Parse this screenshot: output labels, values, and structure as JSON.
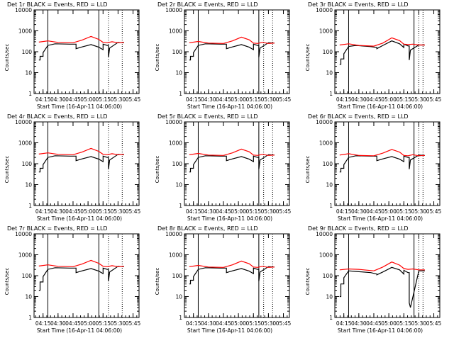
{
  "figure": {
    "xlabel": "Start Time (16-Apr-11 04:06:00)",
    "ylabel": "Counts/sec",
    "xticks": [
      "04:15",
      "04:30",
      "04:45",
      "05:00",
      "05:15",
      "05:30",
      "05:45"
    ],
    "yticks": [
      "1",
      "10",
      "100",
      "1000",
      "10000"
    ]
  },
  "colors": {
    "events": "#000000",
    "lld": "#ff0000",
    "axis": "#000000"
  },
  "chart_data": [
    {
      "type": "line",
      "title": "Det 1r BLACK = Events, RED = LLD",
      "xlabel": "Start Time (16-Apr-11 04:06:00)",
      "ylabel": "Counts/sec",
      "xlim": [
        4.1,
        5.85
      ],
      "ylim": [
        1,
        10000
      ],
      "yscale": "log",
      "vlines_solid": [
        4.33,
        5.18
      ],
      "vlines_dotted": [
        5.34,
        5.57
      ],
      "series": [
        {
          "name": "Events",
          "color": "#000000",
          "x": [
            4.18,
            4.2,
            4.2,
            4.25,
            4.25,
            4.33,
            4.45,
            4.7,
            4.8,
            4.8,
            4.9,
            5.05,
            5.18,
            5.25,
            5.25,
            5.32,
            5.34,
            5.34,
            5.36,
            5.5,
            5.6
          ],
          "y": [
            40,
            40,
            60,
            60,
            90,
            200,
            240,
            230,
            230,
            140,
            170,
            220,
            165,
            125,
            230,
            200,
            200,
            55,
            150,
            280,
            270
          ]
        },
        {
          "name": "LLD",
          "color": "#ff0000",
          "x": [
            4.18,
            4.33,
            4.5,
            4.75,
            4.9,
            5.05,
            5.18,
            5.25,
            5.32,
            5.4,
            5.5,
            5.6
          ],
          "y": [
            290,
            330,
            280,
            270,
            360,
            540,
            390,
            280,
            270,
            300,
            270,
            280
          ]
        }
      ]
    },
    {
      "type": "line",
      "title": "Det 2r BLACK = Events, RED = LLD",
      "xlabel": "Start Time (16-Apr-11 04:06:00)",
      "ylabel": "Counts/sec",
      "xlim": [
        4.1,
        5.85
      ],
      "ylim": [
        1,
        10000
      ],
      "yscale": "log",
      "vlines_solid": [
        4.33,
        5.34
      ],
      "vlines_dotted": [
        5.42,
        5.57
      ],
      "series": [
        {
          "name": "Events",
          "color": "#000000",
          "x": [
            4.18,
            4.2,
            4.2,
            4.25,
            4.25,
            4.33,
            4.45,
            4.7,
            4.8,
            4.8,
            4.9,
            5.05,
            5.18,
            5.25,
            5.25,
            5.32,
            5.34,
            5.34,
            5.36,
            5.5,
            5.6
          ],
          "y": [
            40,
            40,
            60,
            60,
            90,
            200,
            240,
            230,
            230,
            140,
            170,
            220,
            165,
            125,
            230,
            200,
            200,
            55,
            150,
            270,
            260
          ]
        },
        {
          "name": "LLD",
          "color": "#ff0000",
          "x": [
            4.18,
            4.33,
            4.5,
            4.75,
            4.9,
            5.05,
            5.18,
            5.25,
            5.32,
            5.4,
            5.5,
            5.6
          ],
          "y": [
            270,
            310,
            260,
            250,
            330,
            500,
            370,
            260,
            250,
            280,
            250,
            260
          ]
        }
      ]
    },
    {
      "type": "line",
      "title": "Det 3r BLACK = Events, RED = LLD",
      "xlabel": "Start Time (16-Apr-11 04:06:00)",
      "ylabel": "Counts/sec",
      "xlim": [
        4.1,
        5.85
      ],
      "ylim": [
        1,
        10000
      ],
      "yscale": "log",
      "vlines_solid": [
        4.33,
        5.42
      ],
      "vlines_dotted": [
        5.5,
        5.57
      ],
      "series": [
        {
          "name": "Events",
          "color": "#000000",
          "x": [
            4.18,
            4.2,
            4.2,
            4.25,
            4.25,
            4.33,
            4.45,
            4.7,
            4.8,
            4.8,
            4.9,
            5.05,
            5.18,
            5.25,
            5.25,
            5.32,
            5.34,
            5.34,
            5.36,
            5.5,
            5.6
          ],
          "y": [
            25,
            25,
            45,
            45,
            80,
            180,
            200,
            175,
            160,
            140,
            200,
            330,
            240,
            160,
            230,
            190,
            190,
            40,
            120,
            210,
            210
          ]
        },
        {
          "name": "LLD",
          "color": "#ff0000",
          "x": [
            4.18,
            4.33,
            4.5,
            4.75,
            4.9,
            5.05,
            5.18,
            5.25,
            5.32,
            5.4,
            5.5,
            5.6
          ],
          "y": [
            210,
            240,
            200,
            185,
            260,
            460,
            340,
            230,
            220,
            230,
            210,
            210
          ]
        }
      ]
    },
    {
      "type": "line",
      "title": "Det 4r BLACK = Events, RED = LLD",
      "xlabel": "Start Time (16-Apr-11 04:06:00)",
      "ylabel": "Counts/sec",
      "xlim": [
        4.1,
        5.85
      ],
      "ylim": [
        1,
        10000
      ],
      "yscale": "log",
      "vlines_solid": [
        4.33,
        5.18
      ],
      "vlines_dotted": [
        5.34,
        5.57
      ],
      "series": [
        {
          "name": "Events",
          "color": "#000000",
          "x": [
            4.18,
            4.2,
            4.2,
            4.25,
            4.25,
            4.33,
            4.45,
            4.7,
            4.8,
            4.8,
            4.9,
            5.05,
            5.18,
            5.25,
            5.25,
            5.32,
            5.34,
            5.34,
            5.36,
            5.5,
            5.6
          ],
          "y": [
            40,
            40,
            60,
            60,
            90,
            200,
            240,
            230,
            230,
            140,
            170,
            220,
            165,
            125,
            230,
            200,
            200,
            55,
            150,
            280,
            270
          ]
        },
        {
          "name": "LLD",
          "color": "#ff0000",
          "x": [
            4.18,
            4.33,
            4.5,
            4.75,
            4.9,
            5.05,
            5.18,
            5.25,
            5.32,
            5.4,
            5.5,
            5.6
          ],
          "y": [
            290,
            330,
            280,
            270,
            360,
            540,
            390,
            280,
            270,
            300,
            270,
            280
          ]
        }
      ]
    },
    {
      "type": "line",
      "title": "Det 5r BLACK = Events, RED = LLD",
      "xlabel": "Start Time (16-Apr-11 04:06:00)",
      "ylabel": "Counts/sec",
      "xlim": [
        4.1,
        5.85
      ],
      "ylim": [
        1,
        10000
      ],
      "yscale": "log",
      "vlines_solid": [
        4.33,
        5.34
      ],
      "vlines_dotted": [
        5.42,
        5.57
      ],
      "series": [
        {
          "name": "Events",
          "color": "#000000",
          "x": [
            4.18,
            4.2,
            4.2,
            4.25,
            4.25,
            4.33,
            4.45,
            4.7,
            4.8,
            4.8,
            4.9,
            5.05,
            5.18,
            5.25,
            5.25,
            5.32,
            5.34,
            5.34,
            5.36,
            5.5,
            5.6
          ],
          "y": [
            40,
            40,
            60,
            60,
            90,
            200,
            240,
            230,
            230,
            140,
            170,
            220,
            165,
            125,
            230,
            200,
            200,
            55,
            150,
            270,
            260
          ]
        },
        {
          "name": "LLD",
          "color": "#ff0000",
          "x": [
            4.18,
            4.33,
            4.5,
            4.75,
            4.9,
            5.05,
            5.18,
            5.25,
            5.32,
            5.4,
            5.5,
            5.6
          ],
          "y": [
            270,
            310,
            260,
            250,
            330,
            500,
            370,
            260,
            250,
            280,
            250,
            260
          ]
        }
      ]
    },
    {
      "type": "line",
      "title": "Det 6r BLACK = Events, RED = LLD",
      "xlabel": "Start Time (16-Apr-11 04:06:00)",
      "ylabel": "Counts/sec",
      "xlim": [
        4.1,
        5.85
      ],
      "ylim": [
        1,
        10000
      ],
      "yscale": "log",
      "vlines_solid": [
        4.33,
        5.42
      ],
      "vlines_dotted": [
        5.5,
        5.57
      ],
      "series": [
        {
          "name": "Events",
          "color": "#000000",
          "x": [
            4.18,
            4.2,
            4.2,
            4.25,
            4.25,
            4.33,
            4.45,
            4.7,
            4.8,
            4.8,
            4.9,
            5.05,
            5.18,
            5.25,
            5.25,
            5.32,
            5.34,
            5.34,
            5.36,
            5.5,
            5.6
          ],
          "y": [
            40,
            40,
            60,
            60,
            90,
            200,
            240,
            230,
            230,
            140,
            170,
            220,
            165,
            125,
            230,
            200,
            200,
            55,
            150,
            260,
            250
          ]
        },
        {
          "name": "LLD",
          "color": "#ff0000",
          "x": [
            4.18,
            4.33,
            4.5,
            4.75,
            4.9,
            5.05,
            5.18,
            5.25,
            5.32,
            5.4,
            5.5,
            5.6
          ],
          "y": [
            260,
            300,
            250,
            240,
            320,
            480,
            360,
            250,
            240,
            270,
            240,
            250
          ]
        }
      ]
    },
    {
      "type": "line",
      "title": "Det 7r BLACK = Events, RED = LLD",
      "xlabel": "Start Time (16-Apr-11 04:06:00)",
      "ylabel": "Counts/sec",
      "xlim": [
        4.1,
        5.85
      ],
      "ylim": [
        1,
        10000
      ],
      "yscale": "log",
      "vlines_solid": [
        4.33,
        5.18
      ],
      "vlines_dotted": [
        5.34,
        5.57
      ],
      "series": [
        {
          "name": "Events",
          "color": "#000000",
          "x": [
            4.18,
            4.2,
            4.2,
            4.25,
            4.25,
            4.33,
            4.45,
            4.7,
            4.8,
            4.8,
            4.9,
            5.05,
            5.18,
            5.25,
            5.25,
            5.32,
            5.34,
            5.34,
            5.36,
            5.5,
            5.6
          ],
          "y": [
            20,
            20,
            50,
            50,
            90,
            200,
            240,
            230,
            230,
            140,
            170,
            220,
            165,
            125,
            230,
            200,
            200,
            55,
            150,
            280,
            270
          ]
        },
        {
          "name": "LLD",
          "color": "#ff0000",
          "x": [
            4.18,
            4.33,
            4.5,
            4.75,
            4.9,
            5.05,
            5.18,
            5.25,
            5.32,
            5.4,
            5.5,
            5.6
          ],
          "y": [
            290,
            330,
            280,
            270,
            360,
            540,
            390,
            280,
            270,
            300,
            270,
            280
          ]
        }
      ]
    },
    {
      "type": "line",
      "title": "Det 8r BLACK = Events, RED = LLD",
      "xlabel": "Start Time (16-Apr-11 04:06:00)",
      "ylabel": "Counts/sec",
      "xlim": [
        4.1,
        5.85
      ],
      "ylim": [
        1,
        10000
      ],
      "yscale": "log",
      "vlines_solid": [
        4.33,
        5.34
      ],
      "vlines_dotted": [
        5.42,
        5.57
      ],
      "series": [
        {
          "name": "Events",
          "color": "#000000",
          "x": [
            4.18,
            4.2,
            4.2,
            4.25,
            4.25,
            4.33,
            4.45,
            4.7,
            4.8,
            4.8,
            4.9,
            5.05,
            5.18,
            5.25,
            5.25,
            5.32,
            5.34,
            5.34,
            5.36,
            5.5,
            5.6
          ],
          "y": [
            40,
            40,
            60,
            60,
            90,
            200,
            240,
            230,
            230,
            140,
            170,
            220,
            165,
            125,
            230,
            200,
            200,
            55,
            150,
            270,
            260
          ]
        },
        {
          "name": "LLD",
          "color": "#ff0000",
          "x": [
            4.18,
            4.33,
            4.5,
            4.75,
            4.9,
            5.05,
            5.18,
            5.25,
            5.32,
            5.4,
            5.5,
            5.6
          ],
          "y": [
            270,
            310,
            260,
            250,
            330,
            500,
            370,
            260,
            250,
            280,
            250,
            260
          ]
        }
      ]
    },
    {
      "type": "line",
      "title": "Det 9r BLACK = Events, RED = LLD",
      "xlabel": "Start Time (16-Apr-11 04:06:00)",
      "ylabel": "Counts/sec",
      "xlim": [
        4.1,
        5.85
      ],
      "ylim": [
        1,
        10000
      ],
      "yscale": "log",
      "vlines_solid": [
        4.33,
        5.42
      ],
      "vlines_dotted": [
        5.5,
        5.57
      ],
      "series": [
        {
          "name": "Events",
          "color": "#000000",
          "x": [
            4.18,
            4.2,
            4.2,
            4.25,
            4.25,
            4.33,
            4.45,
            4.7,
            4.8,
            4.8,
            4.9,
            5.05,
            5.18,
            5.25,
            5.25,
            5.32,
            5.34,
            5.34,
            5.36,
            5.5,
            5.6
          ],
          "y": [
            10,
            10,
            40,
            40,
            80,
            170,
            160,
            140,
            120,
            110,
            150,
            250,
            190,
            120,
            180,
            140,
            140,
            5,
            3,
            170,
            170
          ]
        },
        {
          "name": "LLD",
          "color": "#ff0000",
          "x": [
            4.18,
            4.33,
            4.5,
            4.75,
            4.9,
            5.05,
            5.18,
            5.25,
            5.32,
            5.4,
            5.5,
            5.6
          ],
          "y": [
            190,
            210,
            200,
            170,
            260,
            450,
            320,
            220,
            200,
            210,
            190,
            190
          ]
        }
      ]
    }
  ]
}
